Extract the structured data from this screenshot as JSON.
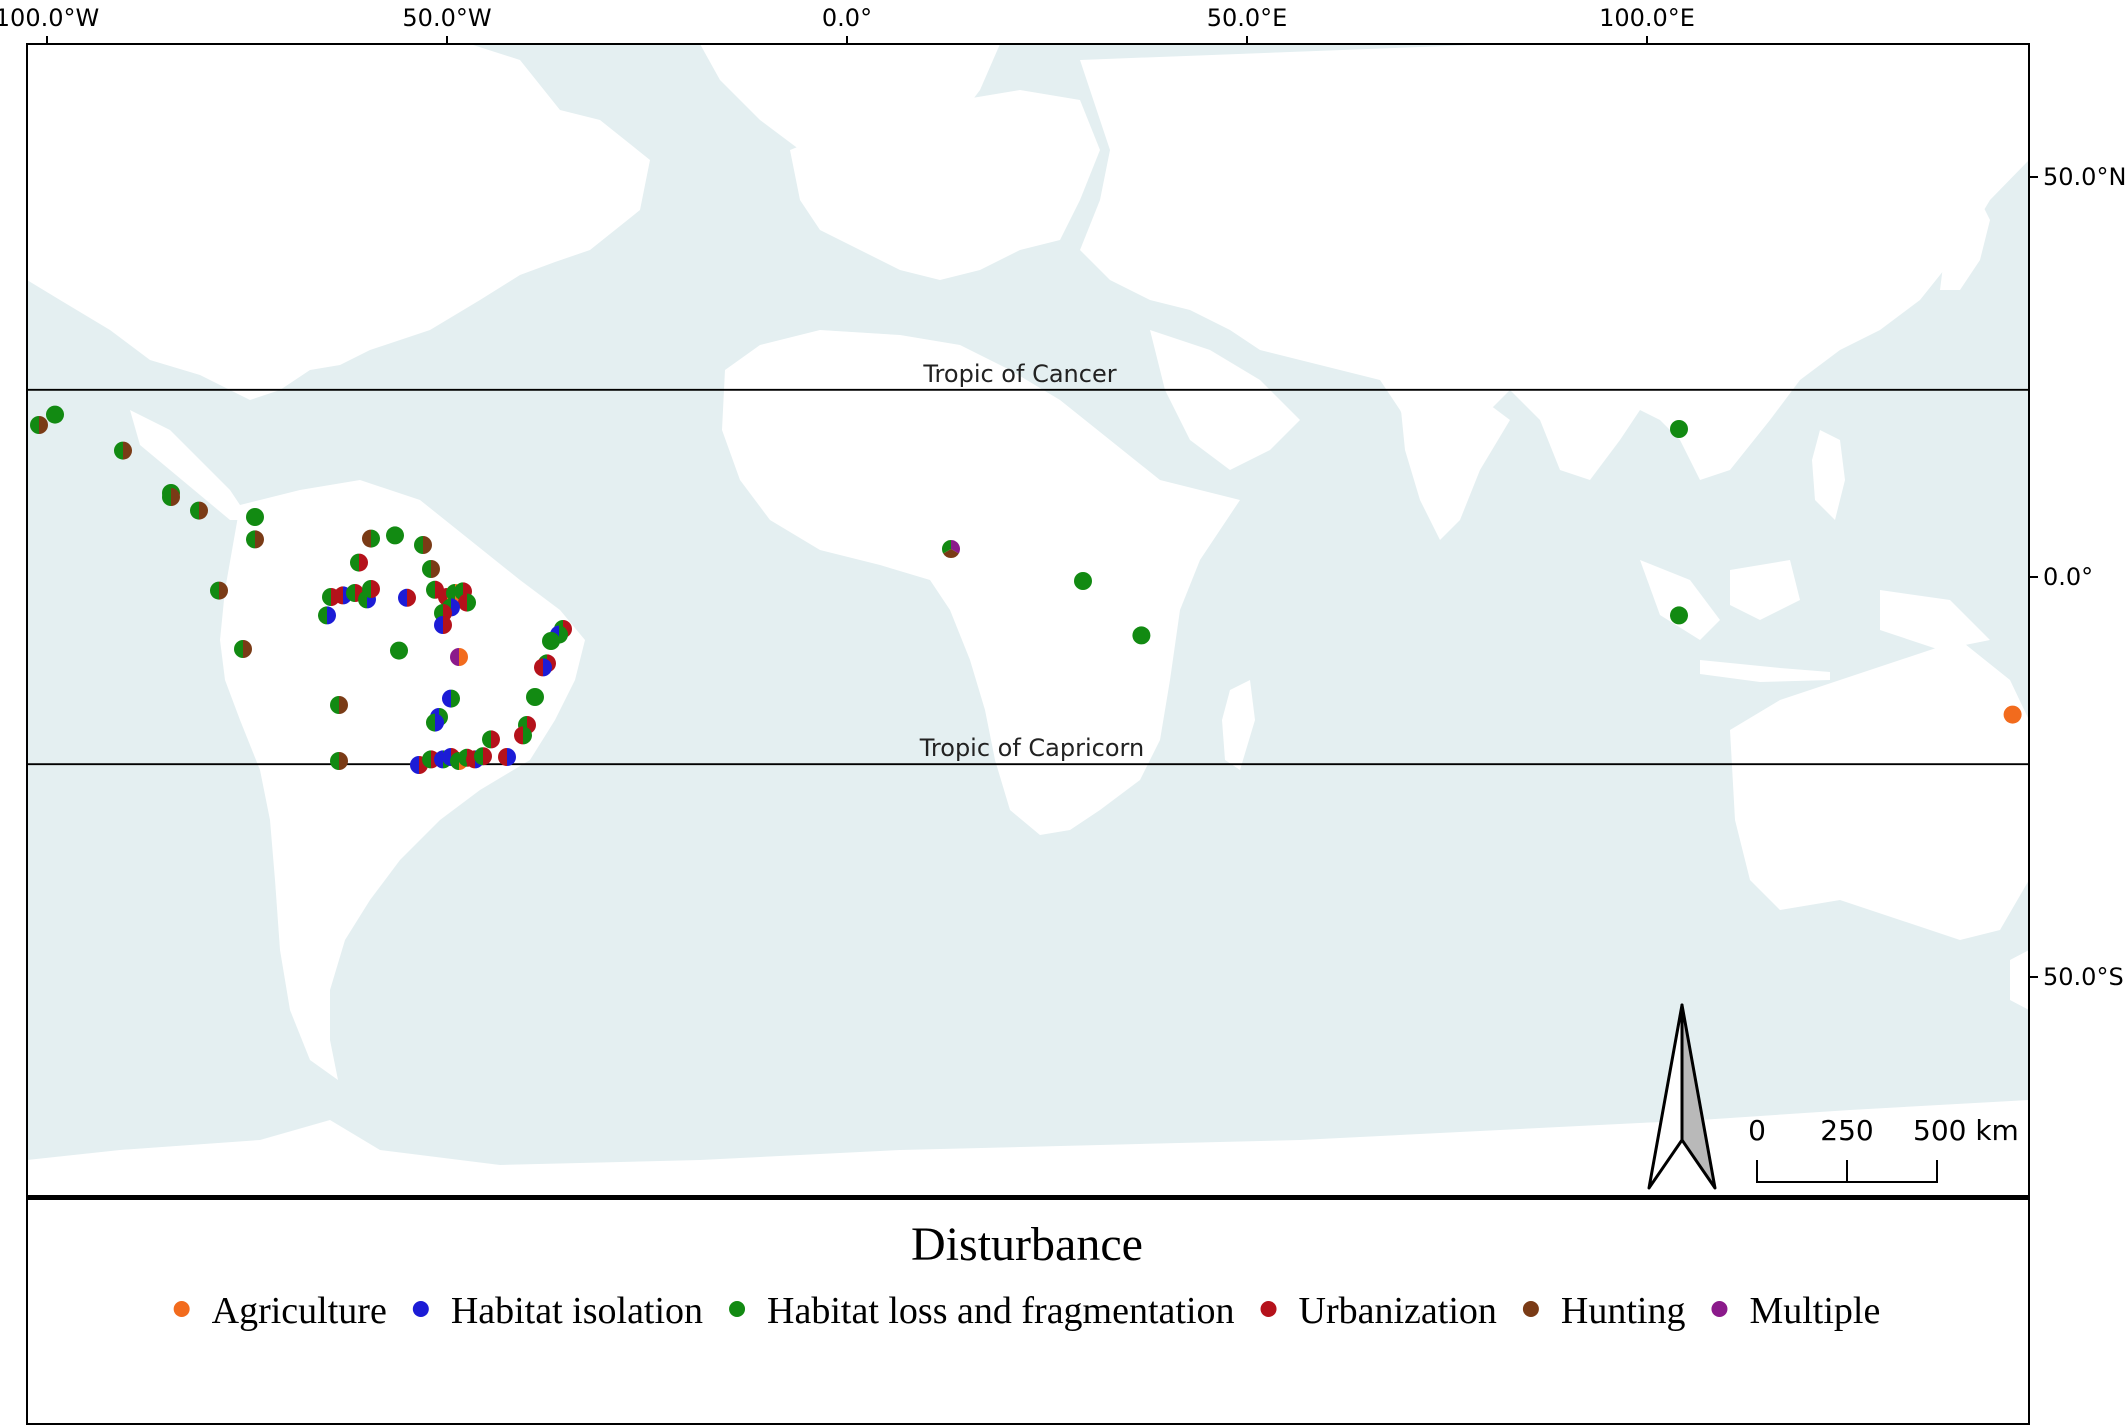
{
  "map": {
    "longitude_labels": [
      {
        "lon": -100,
        "text": "100.0°W"
      },
      {
        "lon": -50,
        "text": "50.0°W"
      },
      {
        "lon": 0,
        "text": "0.0°"
      },
      {
        "lon": 50,
        "text": "50.0°E"
      },
      {
        "lon": 100,
        "text": "100.0°E"
      }
    ],
    "latitude_labels": [
      {
        "lat": 50,
        "text": "50.0°N"
      },
      {
        "lat": 0,
        "text": "0.0°"
      },
      {
        "lat": -50,
        "text": "50.0°S"
      }
    ],
    "tropic_cancer": {
      "lat": 23.4,
      "label": "Tropic of Cancer"
    },
    "tropic_capricorn": {
      "lat": -23.4,
      "label": "Tropic of Capricorn"
    },
    "scale_bar": {
      "labels": [
        "0",
        "250",
        "500 km"
      ]
    },
    "north_arrow": "north-arrow-icon",
    "colors": {
      "ocean": "#e4eff1",
      "land": "#ffffff",
      "frame": "#000000",
      "Agriculture": "#f26b1d",
      "Habitat isolation": "#1c1cd6",
      "Habitat loss and fragmentation": "#128a12",
      "Urbanization": "#b5121b",
      "Hunting": "#7a3b16",
      "Multiple": "#8b1a8b"
    },
    "points": [
      {
        "lon": -101.0,
        "lat": 19.0,
        "cats": [
          "Hunting",
          "Habitat loss and fragmentation"
        ]
      },
      {
        "lon": -99.0,
        "lat": 20.3,
        "cats": [
          "Habitat loss and fragmentation"
        ]
      },
      {
        "lon": -90.5,
        "lat": 15.8,
        "cats": [
          "Hunting",
          "Habitat loss and fragmentation"
        ]
      },
      {
        "lon": -84.5,
        "lat": 10.5,
        "cats": [
          "Habitat loss and fragmentation"
        ]
      },
      {
        "lon": -84.5,
        "lat": 10.0,
        "cats": [
          "Hunting",
          "Habitat loss and fragmentation"
        ]
      },
      {
        "lon": -81.0,
        "lat": 8.3,
        "cats": [
          "Hunting",
          "Habitat loss and fragmentation"
        ]
      },
      {
        "lon": -74.0,
        "lat": 7.5,
        "cats": [
          "Habitat loss and fragmentation"
        ]
      },
      {
        "lon": -74.0,
        "lat": 4.7,
        "cats": [
          "Hunting",
          "Habitat loss and fragmentation"
        ]
      },
      {
        "lon": -78.5,
        "lat": -1.7,
        "cats": [
          "Hunting",
          "Habitat loss and fragmentation"
        ]
      },
      {
        "lon": -75.5,
        "lat": -9.0,
        "cats": [
          "Hunting",
          "Habitat loss and fragmentation"
        ]
      },
      {
        "lon": -59.5,
        "lat": 4.8,
        "cats": [
          "Habitat loss and fragmentation",
          "Hunting"
        ]
      },
      {
        "lon": -56.5,
        "lat": 5.2,
        "cats": [
          "Habitat loss and fragmentation"
        ]
      },
      {
        "lon": -53.0,
        "lat": 4.0,
        "cats": [
          "Hunting",
          "Habitat loss and fragmentation"
        ]
      },
      {
        "lon": -61.0,
        "lat": 1.8,
        "cats": [
          "Urbanization",
          "Habitat loss and fragmentation"
        ]
      },
      {
        "lon": -52.0,
        "lat": 1.0,
        "cats": [
          "Hunting",
          "Habitat loss and fragmentation"
        ]
      },
      {
        "lon": -64.5,
        "lat": -2.5,
        "cats": [
          "Urbanization",
          "Habitat loss and fragmentation"
        ]
      },
      {
        "lon": -63.0,
        "lat": -2.3,
        "cats": [
          "Habitat isolation",
          "Urbanization"
        ]
      },
      {
        "lon": -61.5,
        "lat": -2.0,
        "cats": [
          "Urbanization",
          "Habitat loss and fragmentation"
        ]
      },
      {
        "lon": -60.0,
        "lat": -2.8,
        "cats": [
          "Habitat isolation",
          "Habitat loss and fragmentation"
        ]
      },
      {
        "lon": -59.5,
        "lat": -1.5,
        "cats": [
          "Urbanization",
          "Habitat loss and fragmentation"
        ]
      },
      {
        "lon": -65.0,
        "lat": -4.8,
        "cats": [
          "Habitat isolation",
          "Habitat loss and fragmentation"
        ]
      },
      {
        "lon": -55.0,
        "lat": -2.6,
        "cats": [
          "Urbanization",
          "Habitat isolation"
        ]
      },
      {
        "lon": -51.5,
        "lat": -1.6,
        "cats": [
          "Urbanization",
          "Habitat loss and fragmentation"
        ]
      },
      {
        "lon": -50.0,
        "lat": -2.5,
        "cats": [
          "Agriculture",
          "Urbanization"
        ]
      },
      {
        "lon": -49.0,
        "lat": -2.0,
        "cats": [
          "Agriculture",
          "Habitat loss and fragmentation"
        ]
      },
      {
        "lon": -48.0,
        "lat": -1.8,
        "cats": [
          "Urbanization",
          "Habitat loss and fragmentation"
        ]
      },
      {
        "lon": -47.5,
        "lat": -3.2,
        "cats": [
          "Habitat loss and fragmentation",
          "Urbanization"
        ]
      },
      {
        "lon": -49.5,
        "lat": -3.8,
        "cats": [
          "Habitat isolation",
          "Habitat loss and fragmentation"
        ]
      },
      {
        "lon": -50.5,
        "lat": -4.5,
        "cats": [
          "Urbanization",
          "Habitat loss and fragmentation"
        ]
      },
      {
        "lon": -50.5,
        "lat": -6.0,
        "cats": [
          "Urbanization",
          "Habitat isolation"
        ]
      },
      {
        "lon": -56.0,
        "lat": -9.2,
        "cats": [
          "Habitat loss and fragmentation"
        ]
      },
      {
        "lon": -48.5,
        "lat": -10.0,
        "cats": [
          "Agriculture",
          "Multiple"
        ]
      },
      {
        "lon": -35.5,
        "lat": -6.5,
        "cats": [
          "Urbanization",
          "Habitat loss and fragmentation"
        ]
      },
      {
        "lon": -36.0,
        "lat": -7.2,
        "cats": [
          "Habitat loss and fragmentation",
          "Habitat isolation"
        ]
      },
      {
        "lon": -37.0,
        "lat": -8.0,
        "cats": [
          "Habitat loss and fragmentation"
        ]
      },
      {
        "lon": -37.5,
        "lat": -10.8,
        "cats": [
          "Urbanization",
          "Habitat loss and fragmentation"
        ]
      },
      {
        "lon": -38.0,
        "lat": -11.3,
        "cats": [
          "Habitat isolation",
          "Urbanization"
        ]
      },
      {
        "lon": -39.0,
        "lat": -15.0,
        "cats": [
          "Habitat loss and fragmentation"
        ]
      },
      {
        "lon": -40.0,
        "lat": -18.5,
        "cats": [
          "Urbanization",
          "Habitat loss and fragmentation"
        ]
      },
      {
        "lon": -40.5,
        "lat": -19.8,
        "cats": [
          "Habitat loss and fragmentation",
          "Urbanization"
        ]
      },
      {
        "lon": -49.5,
        "lat": -15.2,
        "cats": [
          "Habitat loss and fragmentation",
          "Habitat isolation"
        ]
      },
      {
        "lon": -51.0,
        "lat": -17.5,
        "cats": [
          "Habitat loss and fragmentation",
          "Habitat isolation"
        ]
      },
      {
        "lon": -51.5,
        "lat": -18.2,
        "cats": [
          "Habitat isolation",
          "Habitat loss and fragmentation"
        ]
      },
      {
        "lon": -63.5,
        "lat": -16.0,
        "cats": [
          "Hunting",
          "Habitat loss and fragmentation"
        ]
      },
      {
        "lon": -63.5,
        "lat": -23.0,
        "cats": [
          "Hunting",
          "Habitat loss and fragmentation"
        ]
      },
      {
        "lon": -53.5,
        "lat": -23.5,
        "cats": [
          "Urbanization",
          "Habitat isolation"
        ]
      },
      {
        "lon": -52.0,
        "lat": -22.8,
        "cats": [
          "Urbanization",
          "Habitat loss and fragmentation"
        ]
      },
      {
        "lon": -50.5,
        "lat": -22.8,
        "cats": [
          "Habitat loss and fragmentation",
          "Habitat isolation"
        ]
      },
      {
        "lon": -49.5,
        "lat": -22.5,
        "cats": [
          "Urbanization",
          "Habitat isolation"
        ]
      },
      {
        "lon": -48.5,
        "lat": -23.0,
        "cats": [
          "Agriculture",
          "Habitat loss and fragmentation"
        ]
      },
      {
        "lon": -47.5,
        "lat": -22.6,
        "cats": [
          "Urbanization",
          "Habitat loss and fragmentation"
        ]
      },
      {
        "lon": -46.5,
        "lat": -22.8,
        "cats": [
          "Habitat isolation",
          "Urbanization"
        ]
      },
      {
        "lon": -45.5,
        "lat": -22.4,
        "cats": [
          "Urbanization",
          "Habitat loss and fragmentation"
        ]
      },
      {
        "lon": -44.5,
        "lat": -20.3,
        "cats": [
          "Urbanization",
          "Habitat loss and fragmentation"
        ]
      },
      {
        "lon": -42.5,
        "lat": -22.5,
        "cats": [
          "Habitat isolation",
          "Urbanization"
        ]
      },
      {
        "lon": 13.0,
        "lat": 3.5,
        "cats": [
          "Multiple",
          "Hunting",
          "Habitat loss and fragmentation"
        ]
      },
      {
        "lon": 29.5,
        "lat": -0.5,
        "cats": [
          "Habitat loss and fragmentation"
        ]
      },
      {
        "lon": 36.8,
        "lat": -7.3,
        "cats": [
          "Habitat loss and fragmentation"
        ]
      },
      {
        "lon": 104.0,
        "lat": 18.5,
        "cats": [
          "Habitat loss and fragmentation"
        ]
      },
      {
        "lon": 104.0,
        "lat": -4.8,
        "cats": [
          "Habitat loss and fragmentation"
        ]
      },
      {
        "lon": 145.7,
        "lat": -17.2,
        "cats": [
          "Agriculture"
        ]
      }
    ]
  },
  "legend": {
    "title": "Disturbance",
    "items": [
      {
        "label": "Agriculture",
        "key": "Agriculture"
      },
      {
        "label": "Habitat isolation",
        "key": "Habitat isolation"
      },
      {
        "label": "Habitat loss and fragmentation",
        "key": "Habitat loss and fragmentation"
      },
      {
        "label": "Urbanization",
        "key": "Urbanization"
      },
      {
        "label": "Hunting",
        "key": "Hunting"
      },
      {
        "label": "Multiple",
        "key": "Multiple"
      }
    ]
  }
}
